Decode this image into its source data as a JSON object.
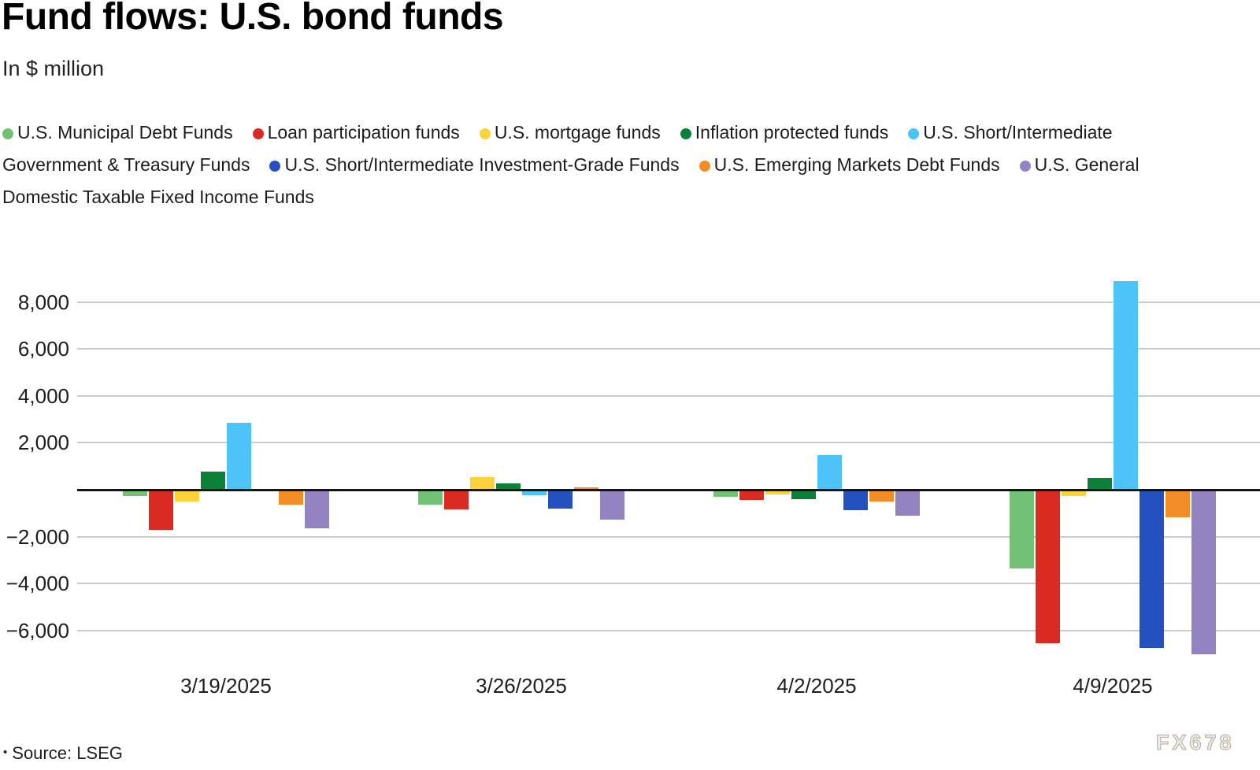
{
  "header": {
    "title": "Fund flows: U.S. bond funds",
    "subtitle": "In $ million"
  },
  "footer": {
    "source_bullet": "•",
    "source_label": "Source: LSEG",
    "watermark": "FX678"
  },
  "styles": {
    "grid_color": "#cbcbcb",
    "axis_color": "#161616",
    "text_color": "#1e1e1e"
  },
  "chart_data": {
    "type": "bar",
    "title": "Fund flows: U.S. bond funds",
    "units_label": "In $ million",
    "xlabel": "",
    "ylabel": "",
    "categories": [
      "3/19/2025",
      "3/26/2025",
      "4/2/2025",
      "4/9/2025"
    ],
    "series": [
      {
        "name": "U.S. Municipal Debt Funds",
        "color": "#72c276",
        "values": [
          -270,
          -620,
          -290,
          -3350
        ]
      },
      {
        "name": "Loan participation funds",
        "color": "#da2b22",
        "values": [
          -1700,
          -840,
          -440,
          -6550
        ]
      },
      {
        "name": "U.S. mortgage funds",
        "color": "#fcd13a",
        "values": [
          -490,
          530,
          -190,
          -260
        ]
      },
      {
        "name": "Inflation protected funds",
        "color": "#0c8038",
        "values": [
          770,
          260,
          -410,
          520
        ]
      },
      {
        "name": "U.S. Short/Intermediate Government & Treasury Funds",
        "color": "#4cc4fa",
        "values": [
          2840,
          -230,
          1470,
          8900
        ]
      },
      {
        "name": "U.S. Short/Intermediate Investment-Grade Funds",
        "color": "#2450c0",
        "values": [
          -80,
          -800,
          -870,
          -6750
        ]
      },
      {
        "name": "U.S. Emerging Markets Debt Funds",
        "color": "#f28c26",
        "values": [
          -650,
          100,
          -500,
          -1170
        ]
      },
      {
        "name": "U.S. General Domestic Taxable Fixed Income Funds",
        "color": "#9384c1",
        "values": [
          -1640,
          -1290,
          -1110,
          -7000
        ]
      }
    ],
    "y_ticks": [
      8000,
      6000,
      4000,
      2000,
      -2000,
      -4000,
      -6000
    ],
    "ylim": [
      -7400,
      9700
    ],
    "grid": true,
    "legend_position": "top"
  }
}
